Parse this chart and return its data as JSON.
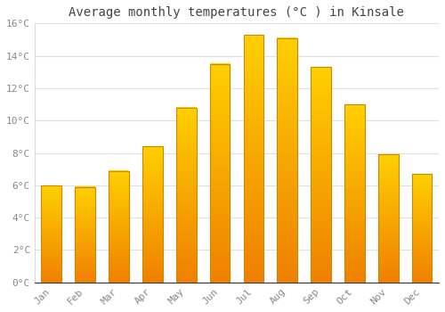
{
  "title": "Average monthly temperatures (°C ) in Kinsale",
  "months": [
    "Jan",
    "Feb",
    "Mar",
    "Apr",
    "May",
    "Jun",
    "Jul",
    "Aug",
    "Sep",
    "Oct",
    "Nov",
    "Dec"
  ],
  "temperatures": [
    6.0,
    5.9,
    6.9,
    8.4,
    10.8,
    13.5,
    15.3,
    15.1,
    13.3,
    11.0,
    7.9,
    6.7
  ],
  "bar_color_top": "#FFD000",
  "bar_color_bottom": "#F08000",
  "bar_edge_color": "#CC8800",
  "ylim": [
    0,
    16
  ],
  "yticks": [
    0,
    2,
    4,
    6,
    8,
    10,
    12,
    14,
    16
  ],
  "ytick_labels": [
    "0°C",
    "2°C",
    "4°C",
    "6°C",
    "8°C",
    "10°C",
    "12°C",
    "14°C",
    "16°C"
  ],
  "grid_color": "#e0e0e0",
  "background_color": "#ffffff",
  "plot_bg_color": "#ffffff",
  "title_fontsize": 10,
  "tick_fontsize": 8,
  "tick_color": "#888888",
  "bar_width": 0.6,
  "title_color": "#444444"
}
